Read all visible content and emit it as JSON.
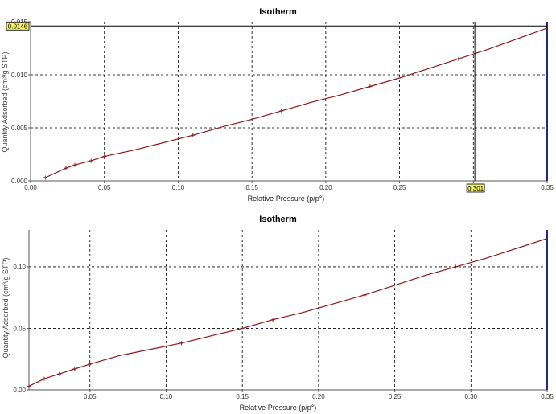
{
  "chart_data": [
    {
      "type": "line",
      "title": "Isotherm",
      "xlabel": "Relative Pressure (p/p°)",
      "ylabel": "Quantity Adsorbed (cm³/g STP)",
      "xlim": [
        0.0,
        0.35
      ],
      "ylim": [
        0.0,
        0.015
      ],
      "x_ticks": [
        0.0,
        0.05,
        0.1,
        0.15,
        0.2,
        0.25,
        0.3,
        0.35
      ],
      "x_tick_labels": [
        "0.00",
        "0.05",
        "0.10",
        "0.15",
        "0.20",
        "0.25",
        "0.30",
        "0.35"
      ],
      "y_ticks": [
        0.0,
        0.005,
        0.01,
        0.015
      ],
      "y_tick_labels": [
        "0.000",
        "0.005",
        "0.010",
        "0.015"
      ],
      "grid": true,
      "line_color": "#8b1a1a",
      "series": [
        {
          "x": [
            0.01,
            0.024,
            0.03,
            0.041,
            0.05,
            0.07,
            0.09,
            0.11,
            0.13,
            0.15,
            0.17,
            0.19,
            0.21,
            0.23,
            0.25,
            0.27,
            0.29,
            0.31,
            0.33,
            0.35
          ],
          "y": [
            0.0003,
            0.0012,
            0.0015,
            0.0019,
            0.0023,
            0.0029,
            0.0036,
            0.0043,
            0.0051,
            0.0058,
            0.0066,
            0.0074,
            0.0081,
            0.0089,
            0.0097,
            0.0106,
            0.0115,
            0.0124,
            0.0134,
            0.0144
          ]
        }
      ],
      "markers": {
        "x": [
          0.01,
          0.024,
          0.03,
          0.041,
          0.05,
          0.11,
          0.17,
          0.23,
          0.29
        ],
        "y": [
          0.0003,
          0.0012,
          0.0015,
          0.0019,
          0.0023,
          0.0043,
          0.0066,
          0.0089,
          0.0115
        ]
      },
      "crosshair": {
        "x": 0.301,
        "y": 0.0146,
        "x_label": "0.301",
        "y_label": "0.0146"
      }
    },
    {
      "type": "line",
      "title": "Isotherm",
      "xlabel": "Relative Pressure (p/p°)",
      "ylabel": "Quantity Adsorbed (cm³/g STP)",
      "xlim": [
        0.01,
        0.35
      ],
      "ylim": [
        0.0,
        0.13
      ],
      "x_ticks": [
        0.05,
        0.1,
        0.15,
        0.2,
        0.25,
        0.3,
        0.35
      ],
      "x_tick_labels": [
        "0.05",
        "0.10",
        "0.15",
        "0.20",
        "0.25",
        "0.30",
        "0.35"
      ],
      "y_ticks": [
        0.0,
        0.05,
        0.1
      ],
      "y_tick_labels": [
        "0.00",
        "0.05",
        "0.10"
      ],
      "grid": true,
      "line_color": "#8b1a1a",
      "series": [
        {
          "x": [
            0.01,
            0.02,
            0.03,
            0.04,
            0.05,
            0.07,
            0.09,
            0.11,
            0.13,
            0.15,
            0.17,
            0.19,
            0.21,
            0.23,
            0.25,
            0.27,
            0.29,
            0.31,
            0.33,
            0.35
          ],
          "y": [
            0.003,
            0.009,
            0.013,
            0.017,
            0.021,
            0.028,
            0.033,
            0.038,
            0.044,
            0.05,
            0.057,
            0.063,
            0.07,
            0.077,
            0.085,
            0.093,
            0.1,
            0.107,
            0.115,
            0.123
          ]
        }
      ],
      "markers": {
        "x": [
          0.01,
          0.02,
          0.03,
          0.04,
          0.05,
          0.11,
          0.17,
          0.23,
          0.29
        ],
        "y": [
          0.003,
          0.009,
          0.013,
          0.017,
          0.021,
          0.038,
          0.057,
          0.077,
          0.1
        ]
      }
    }
  ]
}
